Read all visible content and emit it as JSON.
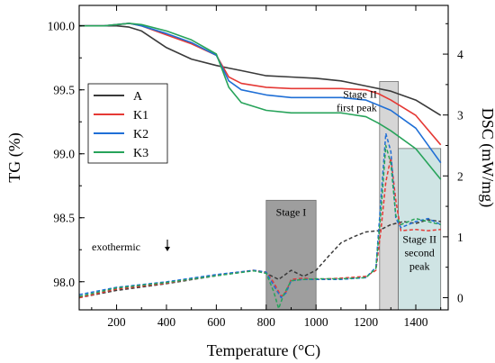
{
  "chart_data": {
    "type": "line",
    "xlabel": "Temperature (°C)",
    "ylabel_left": "TG (%)",
    "ylabel_right": "DSC (mW/mg)",
    "xlim": [
      50,
      1530
    ],
    "ylim_left": [
      97.78,
      100.16
    ],
    "ylim_right": [
      -0.2,
      4.8
    ],
    "x_ticks": [
      200,
      400,
      600,
      800,
      1000,
      1200,
      1400
    ],
    "y_left_ticks": [
      98.0,
      98.5,
      99.0,
      99.5,
      100.0
    ],
    "y_left_tick_labels": [
      "98.0",
      "98.5",
      "99.0",
      "99.5",
      "100.0"
    ],
    "y_right_ticks": [
      0,
      1,
      2,
      3,
      4
    ],
    "legend_position": "left-center",
    "grid": false,
    "legend": [
      "A",
      "K1",
      "K2",
      "K3"
    ],
    "colors": {
      "A": "#3a3a3a",
      "K1": "#e53935",
      "K2": "#1f6fd6",
      "K3": "#27a35a"
    },
    "tg_series": [
      {
        "name": "A",
        "x": [
          50,
          150,
          200,
          250,
          300,
          400,
          500,
          600,
          650,
          700,
          800,
          900,
          1000,
          1100,
          1200,
          1300,
          1400,
          1500
        ],
        "y": [
          100.0,
          100.0,
          100.0,
          99.99,
          99.96,
          99.83,
          99.74,
          99.69,
          99.67,
          99.65,
          99.61,
          99.6,
          99.59,
          99.57,
          99.53,
          99.49,
          99.42,
          99.3
        ]
      },
      {
        "name": "K1",
        "x": [
          50,
          150,
          200,
          250,
          300,
          400,
          500,
          600,
          650,
          700,
          800,
          900,
          1000,
          1100,
          1200,
          1250,
          1300,
          1400,
          1500
        ],
        "y": [
          100.0,
          100.0,
          100.01,
          100.02,
          100.0,
          99.93,
          99.86,
          99.77,
          99.6,
          99.55,
          99.52,
          99.51,
          99.51,
          99.51,
          99.5,
          99.47,
          99.42,
          99.3,
          99.07
        ]
      },
      {
        "name": "K2",
        "x": [
          50,
          150,
          200,
          250,
          300,
          400,
          500,
          600,
          650,
          700,
          800,
          900,
          1000,
          1100,
          1200,
          1250,
          1300,
          1400,
          1500
        ],
        "y": [
          100.0,
          100.0,
          100.01,
          100.02,
          100.0,
          99.94,
          99.87,
          99.77,
          99.57,
          99.5,
          99.46,
          99.44,
          99.44,
          99.44,
          99.42,
          99.38,
          99.34,
          99.2,
          98.93
        ]
      },
      {
        "name": "K3",
        "x": [
          50,
          150,
          200,
          250,
          300,
          400,
          500,
          600,
          650,
          700,
          800,
          900,
          1000,
          1100,
          1200,
          1250,
          1300,
          1400,
          1500
        ],
        "y": [
          100.0,
          100.0,
          100.01,
          100.02,
          100.01,
          99.96,
          99.89,
          99.78,
          99.52,
          99.4,
          99.34,
          99.32,
          99.32,
          99.32,
          99.29,
          99.24,
          99.18,
          99.04,
          98.8
        ]
      }
    ],
    "dsc_series": [
      {
        "name": "A",
        "x": [
          50,
          200,
          400,
          600,
          750,
          800,
          850,
          900,
          950,
          1000,
          1050,
          1100,
          1150,
          1200,
          1250,
          1300,
          1350,
          1400,
          1450,
          1500
        ],
        "y": [
          0.0,
          0.12,
          0.23,
          0.36,
          0.45,
          0.4,
          0.3,
          0.45,
          0.35,
          0.45,
          0.68,
          0.9,
          1.0,
          1.08,
          1.1,
          1.2,
          1.25,
          1.22,
          1.28,
          1.25
        ]
      },
      {
        "name": "K1",
        "x": [
          50,
          200,
          400,
          600,
          750,
          800,
          830,
          860,
          880,
          900,
          950,
          1000,
          1100,
          1200,
          1240,
          1260,
          1280,
          1300,
          1320,
          1340,
          1400,
          1450,
          1500
        ],
        "y": [
          0.0,
          0.14,
          0.24,
          0.37,
          0.45,
          0.42,
          0.25,
          0.02,
          0.1,
          0.3,
          0.32,
          0.3,
          0.32,
          0.35,
          0.45,
          1.1,
          1.9,
          2.3,
          1.6,
          1.1,
          1.12,
          1.1,
          1.12
        ]
      },
      {
        "name": "K2",
        "x": [
          50,
          200,
          400,
          600,
          750,
          800,
          830,
          860,
          880,
          900,
          950,
          1000,
          1100,
          1200,
          1240,
          1260,
          1280,
          1300,
          1320,
          1340,
          1400,
          1450,
          1500
        ],
        "y": [
          0.05,
          0.17,
          0.26,
          0.38,
          0.45,
          0.42,
          0.2,
          0.0,
          0.08,
          0.28,
          0.3,
          0.3,
          0.3,
          0.33,
          0.5,
          1.6,
          2.7,
          2.4,
          1.3,
          1.15,
          1.25,
          1.3,
          1.2
        ]
      },
      {
        "name": "K3",
        "x": [
          50,
          200,
          400,
          600,
          750,
          800,
          830,
          850,
          870,
          900,
          950,
          1000,
          1100,
          1200,
          1240,
          1260,
          1280,
          1300,
          1320,
          1340,
          1400,
          1450,
          1500
        ],
        "y": [
          0.02,
          0.16,
          0.25,
          0.36,
          0.44,
          0.4,
          0.1,
          -0.18,
          0.05,
          0.28,
          0.3,
          0.31,
          0.31,
          0.33,
          0.48,
          1.4,
          2.5,
          2.2,
          1.35,
          1.2,
          1.3,
          1.25,
          1.2
        ]
      }
    ],
    "regions": [
      {
        "label": "Stage I",
        "x0": 800,
        "x1": 1000,
        "dsc_y0": -0.2,
        "dsc_y1": 1.6,
        "fill": "#9e9e9e"
      },
      {
        "label": "Stage II first peak",
        "x0": 1255,
        "x1": 1330,
        "dsc_y0": -0.2,
        "dsc_y1": 3.55,
        "fill": "#d6d6d6"
      },
      {
        "label": "Stage II second peak",
        "x0": 1330,
        "x1": 1500,
        "dsc_y0": -0.2,
        "dsc_y1": 2.45,
        "fill": "#cfe4e4"
      }
    ],
    "annotations": {
      "stage1": "Stage I",
      "stage2_first_line1": "Stage II",
      "stage2_first_line2": "first peak",
      "stage2_second_line1": "Stage II",
      "stage2_second_line2": "second",
      "stage2_second_line3": "peak",
      "exothermic": "exothermic"
    }
  }
}
